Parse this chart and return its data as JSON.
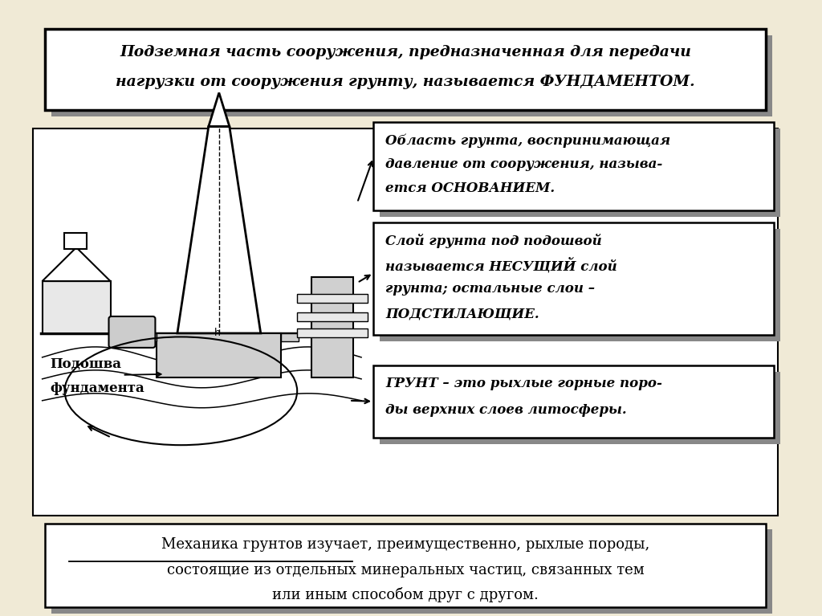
{
  "bg_color": "#f0ead6",
  "white": "#ffffff",
  "black": "#000000",
  "gray": "#888888",
  "light_gray": "#d0d0d0",
  "mid_gray": "#cccccc",
  "title_box_text1": "Подземная часть сооружения, предназначенная для передачи",
  "title_box_text2": "нагрузки от сооружения грунту, называется ФУНДАМЕНТОМ.",
  "box1_text1": "Область грунта, воспринимающая",
  "box1_text2": "давление от сооружения, называ-",
  "box1_text3": "ется ОСНОВАНИЕМ.",
  "box2_text1": "Слой грунта под подошвой",
  "box2_text2": "называется НЕСУЩИЙ слой",
  "box2_text3": "грунта; остальные слои –",
  "box2_text4": "ПОДСТИЛАЮЩИЕ.",
  "box3_text1": "ГРУНТ – это рыхлые горные поро-",
  "box3_text2": "ды верхних слоев литосферы.",
  "bottom_box_line1": "Механика грунтов изучает, преимущественно, рыхлые породы,",
  "bottom_box_line2": "состоящие из отдельных минеральных частиц, связанных тем",
  "bottom_box_line3": "или иным способом друг с другом.",
  "bottom_box_underline": "Механика грунтов изучает",
  "label_line1": "Подошва",
  "label_line2": "фундамента"
}
